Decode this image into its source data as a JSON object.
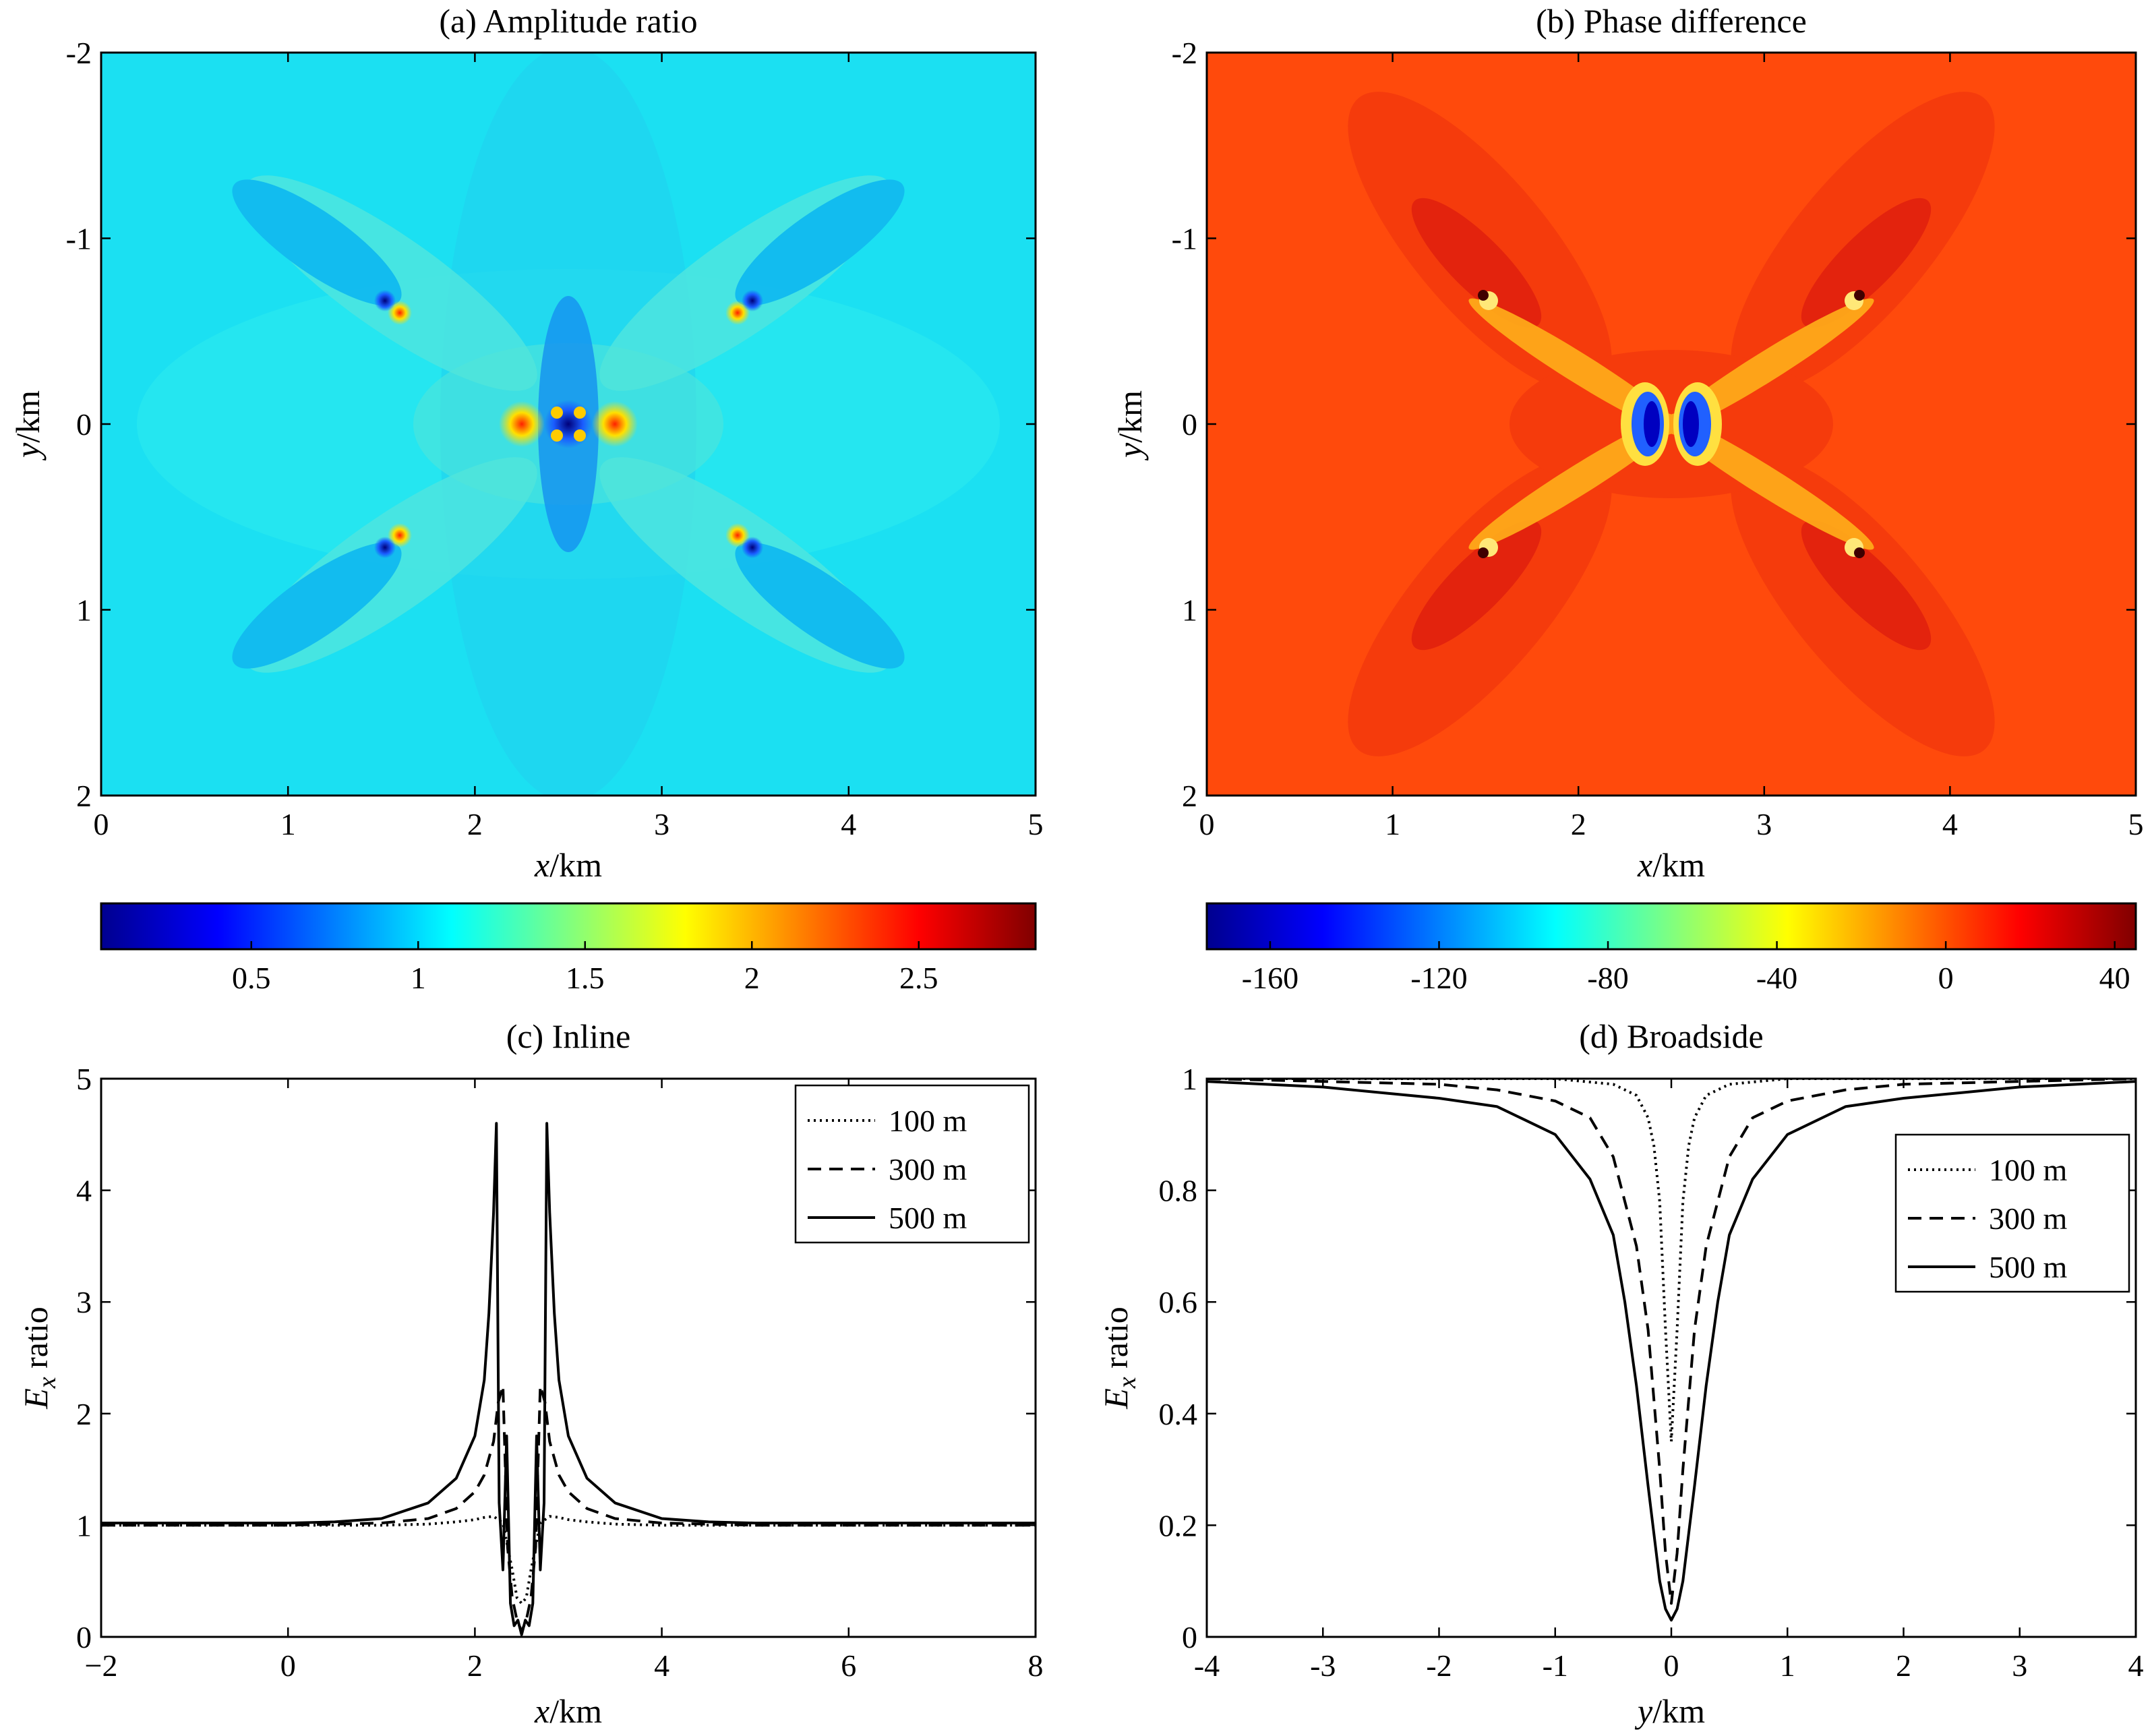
{
  "colors": {
    "amplitude_background": "#1be0f2",
    "phase_background": "#ff4a0c",
    "axes": "#000000"
  },
  "chart_data": [
    {
      "id": "a",
      "type": "heatmap",
      "title": "(a) Amplitude ratio",
      "xlabel_var": "x",
      "xlabel_unit": "/km",
      "ylabel_var": "y",
      "ylabel_unit": "/km",
      "xlim": [
        0,
        5
      ],
      "ylim": [
        -2,
        2
      ],
      "y_reversed": true,
      "xticks": [
        "0",
        "1",
        "2",
        "3",
        "4",
        "5"
      ],
      "yticks": [
        "-2",
        "-1",
        "0",
        "1",
        "2"
      ],
      "colorbar": {
        "colormap": "jet",
        "range": [
          0.05,
          2.85
        ],
        "ticks": [
          "0.5",
          "1",
          "1.5",
          "2",
          "2.5"
        ],
        "tick_values": [
          0.5,
          1,
          1.5,
          2,
          2.5
        ]
      },
      "background_value": 1.3,
      "features": [
        {
          "x": 1.6,
          "y": -0.6,
          "value": 2.7
        },
        {
          "x": 3.4,
          "y": -0.6,
          "value": 2.7
        },
        {
          "x": 1.6,
          "y": 0.6,
          "value": 2.7
        },
        {
          "x": 3.4,
          "y": 0.6,
          "value": 2.7
        },
        {
          "x": 2.28,
          "y": 0.0,
          "value": 2.5
        },
        {
          "x": 2.72,
          "y": 0.0,
          "value": 2.5
        },
        {
          "x": 2.5,
          "y": 0.0,
          "value": 0.1
        }
      ]
    },
    {
      "id": "b",
      "type": "heatmap",
      "title": "(b) Phase difference",
      "xlabel_var": "x",
      "xlabel_unit": "/km",
      "ylabel_var": "y",
      "ylabel_unit": "/km",
      "xlim": [
        0,
        5
      ],
      "ylim": [
        -2,
        2
      ],
      "y_reversed": true,
      "xticks": [
        "0",
        "1",
        "2",
        "3",
        "4",
        "5"
      ],
      "yticks": [
        "-2",
        "-1",
        "0",
        "1",
        "2"
      ],
      "colorbar": {
        "colormap": "jet",
        "range": [
          -175,
          45
        ],
        "ticks": [
          "-160",
          "-120",
          "-80",
          "-40",
          "0",
          "40"
        ],
        "tick_values": [
          -160,
          -120,
          -80,
          -40,
          0,
          40
        ]
      },
      "background_value": 5,
      "features": [
        {
          "x": 2.38,
          "y": 0.0,
          "value": -150
        },
        {
          "x": 2.62,
          "y": 0.0,
          "value": -150
        },
        {
          "x": 1.55,
          "y": -0.6,
          "value": -40
        },
        {
          "x": 3.45,
          "y": -0.6,
          "value": -40
        },
        {
          "x": 1.55,
          "y": 0.6,
          "value": -40
        },
        {
          "x": 3.45,
          "y": 0.6,
          "value": -40
        }
      ]
    },
    {
      "id": "c",
      "type": "line",
      "title": "(c) Inline",
      "xlabel_var": "x",
      "xlabel_unit": "/km",
      "ylabel_var": "E",
      "ylabel_sub": "x",
      "ylabel_rest": " ratio",
      "xlim": [
        -2,
        8
      ],
      "ylim": [
        0,
        5
      ],
      "xticks": [
        "−2",
        "0",
        "2",
        "4",
        "6",
        "8"
      ],
      "xtick_values": [
        -2,
        0,
        2,
        4,
        6,
        8
      ],
      "yticks": [
        "0",
        "1",
        "2",
        "3",
        "4",
        "5"
      ],
      "ytick_values": [
        0,
        1,
        2,
        3,
        4,
        5
      ],
      "legend": {
        "position": "top-right"
      },
      "series": [
        {
          "name": "100 m",
          "dash": "dotted",
          "x": [
            -2,
            0,
            1,
            1.5,
            1.8,
            2.0,
            2.1,
            2.2,
            2.3,
            2.4,
            2.45,
            2.5,
            2.55,
            2.6,
            2.7,
            2.8,
            2.9,
            3.0,
            3.2,
            3.5,
            4,
            5,
            6,
            7,
            8
          ],
          "y": [
            1.0,
            1.0,
            1.0,
            1.01,
            1.03,
            1.05,
            1.07,
            1.08,
            1.02,
            0.6,
            0.35,
            0.3,
            0.35,
            0.6,
            1.02,
            1.08,
            1.07,
            1.05,
            1.03,
            1.01,
            1.0,
            1.0,
            1.0,
            1.0,
            1.0
          ]
        },
        {
          "name": "300 m",
          "dash": "dashed",
          "x": [
            -2,
            0,
            1,
            1.5,
            1.8,
            2.0,
            2.1,
            2.2,
            2.25,
            2.3,
            2.35,
            2.4,
            2.45,
            2.5,
            2.55,
            2.6,
            2.65,
            2.7,
            2.75,
            2.8,
            2.9,
            3.0,
            3.2,
            3.5,
            4,
            5,
            6,
            7,
            8
          ],
          "y": [
            1.0,
            1.0,
            1.02,
            1.06,
            1.15,
            1.3,
            1.45,
            1.75,
            2.1,
            2.25,
            0.8,
            0.35,
            0.15,
            0.05,
            0.15,
            0.35,
            0.8,
            2.25,
            2.1,
            1.75,
            1.45,
            1.3,
            1.15,
            1.06,
            1.02,
            1.0,
            1.0,
            1.0,
            1.0
          ]
        },
        {
          "name": "500 m",
          "dash": "solid",
          "x": [
            -2,
            -1,
            0,
            0.5,
            1,
            1.5,
            1.8,
            2.0,
            2.1,
            2.15,
            2.2,
            2.23,
            2.26,
            2.3,
            2.34,
            2.38,
            2.42,
            2.46,
            2.5,
            2.54,
            2.58,
            2.62,
            2.66,
            2.7,
            2.74,
            2.77,
            2.8,
            2.85,
            2.9,
            3.0,
            3.2,
            3.5,
            4,
            4.5,
            5,
            6,
            7,
            8
          ],
          "y": [
            1.02,
            1.02,
            1.02,
            1.03,
            1.06,
            1.2,
            1.42,
            1.8,
            2.3,
            2.9,
            3.8,
            4.6,
            1.2,
            0.6,
            1.8,
            0.3,
            0.1,
            0.15,
            0.02,
            0.15,
            0.1,
            0.3,
            1.8,
            0.6,
            1.2,
            4.6,
            3.8,
            2.9,
            2.3,
            1.8,
            1.42,
            1.2,
            1.06,
            1.03,
            1.02,
            1.02,
            1.02,
            1.02
          ]
        }
      ]
    },
    {
      "id": "d",
      "type": "line",
      "title": "(d) Broadside",
      "xlabel_var": "y",
      "xlabel_unit": "/km",
      "ylabel_var": "E",
      "ylabel_sub": "x",
      "ylabel_rest": " ratio",
      "xlim": [
        -4,
        4
      ],
      "ylim": [
        0,
        1
      ],
      "xticks": [
        "-4",
        "-3",
        "-2",
        "-1",
        "0",
        "1",
        "2",
        "3",
        "4"
      ],
      "xtick_values": [
        -4,
        -3,
        -2,
        -1,
        0,
        1,
        2,
        3,
        4
      ],
      "yticks": [
        "0",
        "0.2",
        "0.4",
        "0.6",
        "0.8",
        "1"
      ],
      "ytick_values": [
        0,
        0.2,
        0.4,
        0.6,
        0.8,
        1
      ],
      "legend": {
        "position": "top-right"
      },
      "series": [
        {
          "name": "100 m",
          "dash": "dotted",
          "x": [
            -4,
            -1,
            -0.5,
            -0.3,
            -0.2,
            -0.15,
            -0.1,
            -0.05,
            0,
            0.05,
            0.1,
            0.15,
            0.2,
            0.3,
            0.5,
            1,
            4
          ],
          "y": [
            1.0,
            1.0,
            0.99,
            0.97,
            0.93,
            0.88,
            0.78,
            0.55,
            0.35,
            0.55,
            0.78,
            0.88,
            0.93,
            0.97,
            0.99,
            1.0,
            1.0
          ]
        },
        {
          "name": "300 m",
          "dash": "dashed",
          "x": [
            -4,
            -3,
            -2,
            -1.5,
            -1,
            -0.7,
            -0.5,
            -0.3,
            -0.2,
            -0.1,
            -0.05,
            0,
            0.05,
            0.1,
            0.2,
            0.3,
            0.5,
            0.7,
            1,
            1.5,
            2,
            3,
            4
          ],
          "y": [
            1.0,
            0.995,
            0.99,
            0.98,
            0.96,
            0.93,
            0.86,
            0.7,
            0.55,
            0.3,
            0.15,
            0.06,
            0.15,
            0.3,
            0.55,
            0.7,
            0.86,
            0.93,
            0.96,
            0.98,
            0.99,
            0.995,
            1.0
          ]
        },
        {
          "name": "500 m",
          "dash": "solid",
          "x": [
            -4,
            -3.5,
            -3,
            -2.5,
            -2,
            -1.5,
            -1,
            -0.7,
            -0.5,
            -0.4,
            -0.3,
            -0.2,
            -0.1,
            -0.05,
            0,
            0.05,
            0.1,
            0.2,
            0.3,
            0.4,
            0.5,
            0.7,
            1,
            1.5,
            2,
            2.5,
            3,
            3.5,
            4
          ],
          "y": [
            0.995,
            0.99,
            0.985,
            0.975,
            0.965,
            0.95,
            0.9,
            0.82,
            0.72,
            0.6,
            0.45,
            0.27,
            0.1,
            0.05,
            0.03,
            0.05,
            0.1,
            0.27,
            0.45,
            0.6,
            0.72,
            0.82,
            0.9,
            0.95,
            0.965,
            0.975,
            0.985,
            0.99,
            0.995
          ]
        }
      ]
    }
  ]
}
